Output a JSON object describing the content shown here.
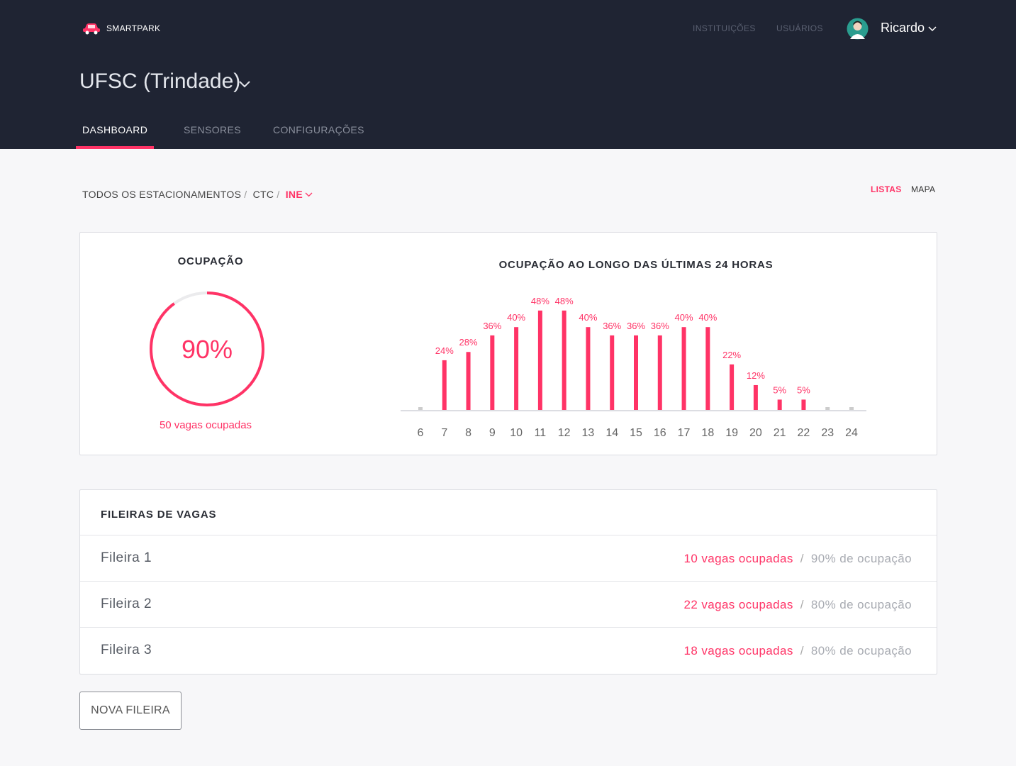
{
  "header": {
    "brand": "SMARTPARK",
    "nav": [
      "INSTITUIÇÕES",
      "USUÁRIOS"
    ],
    "user": "Ricardo",
    "institution": "UFSC (Trindade)",
    "tabs": [
      "DASHBOARD",
      "SENSORES",
      "CONFIGURAÇÕES"
    ],
    "active_tab": 0
  },
  "breadcrumb": {
    "items": [
      "TODOS OS ESTACIONAMENTOS",
      "CTC",
      "INE"
    ],
    "separator": "/"
  },
  "views": {
    "items": [
      "LISTAS",
      "MAPA"
    ],
    "active": 0
  },
  "occupancy": {
    "title": "OCUPAÇÃO",
    "value": 90,
    "value_label": "90%",
    "caption": "50 vagas ocupadas",
    "color": "#ff3366"
  },
  "chart_data": {
    "type": "bar",
    "title": "OCUPAÇÃO AO LONGO DAS ÚLTIMAS 24 HORAS",
    "categories": [
      "6",
      "7",
      "8",
      "9",
      "10",
      "11",
      "12",
      "13",
      "14",
      "15",
      "16",
      "17",
      "18",
      "19",
      "20",
      "21",
      "22",
      "23",
      "24"
    ],
    "values": [
      0,
      24,
      28,
      36,
      40,
      48,
      48,
      40,
      36,
      36,
      36,
      40,
      40,
      22,
      12,
      5,
      5,
      0,
      0
    ],
    "value_labels": [
      null,
      "24%",
      "28%",
      "36%",
      "40%",
      "48%",
      "48%",
      "40%",
      "36%",
      "36%",
      "36%",
      "40%",
      "40%",
      "22%",
      "12%",
      "5%",
      "5%",
      null,
      null
    ],
    "color": "#ff3366",
    "zero_color": "#cccccc",
    "ylim": [
      0,
      50
    ],
    "grid": false
  },
  "rows": {
    "title": "FILEIRAS DE VAGAS",
    "separator": "/",
    "items": [
      {
        "name": "Fileira 1",
        "occupied": "10 vagas ocupadas",
        "rate": "90% de ocupação"
      },
      {
        "name": "Fileira 2",
        "occupied": "22 vagas ocupadas",
        "rate": "80% de ocupação"
      },
      {
        "name": "Fileira 3",
        "occupied": "18 vagas ocupadas",
        "rate": "80% de ocupação"
      }
    ]
  },
  "button": "NOVA FILEIRA"
}
